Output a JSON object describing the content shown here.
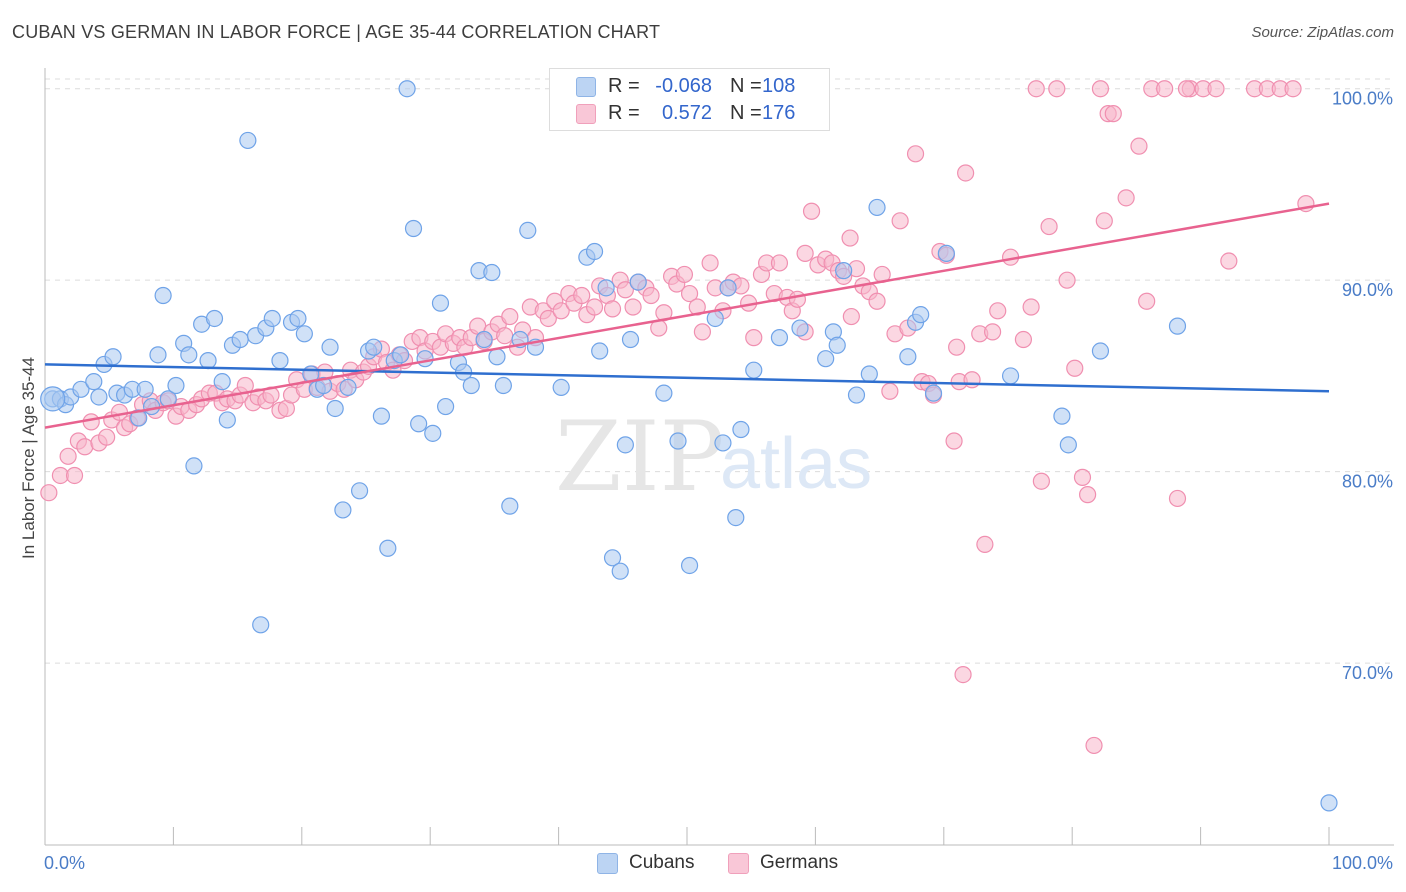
{
  "title": "CUBAN VS GERMAN IN LABOR FORCE | AGE 35-44 CORRELATION CHART",
  "source": "Source: ZipAtlas.com",
  "watermark": {
    "zip": "ZIP",
    "atlas": "atlas"
  },
  "legend": {
    "rows": [
      {
        "r_label": "R =",
        "r_value": "-0.068",
        "n_label": "N =",
        "n_value": "108",
        "color": "#a9c8f0"
      },
      {
        "r_label": "R =",
        "r_value": "0.572",
        "n_label": "N =",
        "n_value": "176",
        "color": "#f7b6cb"
      }
    ]
  },
  "bottom_legend": [
    {
      "label": "Cubans",
      "color": "#a9c8f0"
    },
    {
      "label": "Germans",
      "color": "#f7b6cb"
    }
  ],
  "chart_data": {
    "type": "scatter",
    "ylabel": "In Labor Force | Age 35-44",
    "xlabel": "",
    "xlim": [
      0,
      100
    ],
    "ylim": [
      60.5,
      101.5
    ],
    "x_tick_labels": [
      "0.0%",
      "100.0%"
    ],
    "y_ticks": [
      {
        "value": 70,
        "label": "70.0%"
      },
      {
        "value": 80,
        "label": "80.0%"
      },
      {
        "value": 90,
        "label": "90.0%"
      },
      {
        "value": 100,
        "label": "100.0%"
      }
    ],
    "grid": "horizontal-dashed",
    "legend_position": "top-center",
    "series": [
      {
        "name": "Cubans",
        "color": "#6fa3e8",
        "fill": "#a9c8f0",
        "trend": {
          "x1": 0,
          "y1": 85.6,
          "x2": 100,
          "y2": 84.2,
          "color": "#2f6fcf"
        },
        "points": [
          [
            0.6,
            83.8
          ],
          [
            1.2,
            83.8
          ],
          [
            1.6,
            83.5
          ],
          [
            2.0,
            83.9
          ],
          [
            2.8,
            84.3
          ],
          [
            3.8,
            84.7
          ],
          [
            4.2,
            83.9
          ],
          [
            4.6,
            85.6
          ],
          [
            5.3,
            86.0
          ],
          [
            5.6,
            84.1
          ],
          [
            6.2,
            84.0
          ],
          [
            6.8,
            84.3
          ],
          [
            7.3,
            82.8
          ],
          [
            7.8,
            84.3
          ],
          [
            8.3,
            83.4
          ],
          [
            8.8,
            86.1
          ],
          [
            9.2,
            89.2
          ],
          [
            9.6,
            83.8
          ],
          [
            10.2,
            84.5
          ],
          [
            10.8,
            86.7
          ],
          [
            11.2,
            86.1
          ],
          [
            11.6,
            80.3
          ],
          [
            12.2,
            87.7
          ],
          [
            12.7,
            85.8
          ],
          [
            13.2,
            88.0
          ],
          [
            13.8,
            84.7
          ],
          [
            14.2,
            82.7
          ],
          [
            14.6,
            86.6
          ],
          [
            15.2,
            86.9
          ],
          [
            15.8,
            97.3
          ],
          [
            16.4,
            87.1
          ],
          [
            16.8,
            72.0
          ],
          [
            17.2,
            87.5
          ],
          [
            17.7,
            88.0
          ],
          [
            18.3,
            85.8
          ],
          [
            19.2,
            87.8
          ],
          [
            19.7,
            88.0
          ],
          [
            20.2,
            87.2
          ],
          [
            20.7,
            85.1
          ],
          [
            21.2,
            84.3
          ],
          [
            21.7,
            84.5
          ],
          [
            22.2,
            86.5
          ],
          [
            22.6,
            83.3
          ],
          [
            23.2,
            78.0
          ],
          [
            23.6,
            84.4
          ],
          [
            24.5,
            79.0
          ],
          [
            25.2,
            86.3
          ],
          [
            25.6,
            86.5
          ],
          [
            26.2,
            82.9
          ],
          [
            26.7,
            76.0
          ],
          [
            27.2,
            85.8
          ],
          [
            27.7,
            86.1
          ],
          [
            28.2,
            100.0
          ],
          [
            28.7,
            92.7
          ],
          [
            29.1,
            82.5
          ],
          [
            29.6,
            85.9
          ],
          [
            30.2,
            82.0
          ],
          [
            30.8,
            88.8
          ],
          [
            31.2,
            83.4
          ],
          [
            32.2,
            85.7
          ],
          [
            32.6,
            85.2
          ],
          [
            33.2,
            84.5
          ],
          [
            33.8,
            90.5
          ],
          [
            34.2,
            86.9
          ],
          [
            34.8,
            90.4
          ],
          [
            35.2,
            86.0
          ],
          [
            35.7,
            84.5
          ],
          [
            36.2,
            78.2
          ],
          [
            37.0,
            86.9
          ],
          [
            37.6,
            92.6
          ],
          [
            38.2,
            86.5
          ],
          [
            40.2,
            84.4
          ],
          [
            42.2,
            91.2
          ],
          [
            42.8,
            91.5
          ],
          [
            43.2,
            86.3
          ],
          [
            43.7,
            89.6
          ],
          [
            44.2,
            75.5
          ],
          [
            44.8,
            74.8
          ],
          [
            45.2,
            81.4
          ],
          [
            45.6,
            86.9
          ],
          [
            46.2,
            89.9
          ],
          [
            48.2,
            84.1
          ],
          [
            49.3,
            81.6
          ],
          [
            50.2,
            75.1
          ],
          [
            52.2,
            88.0
          ],
          [
            52.8,
            81.5
          ],
          [
            53.2,
            89.6
          ],
          [
            53.8,
            77.6
          ],
          [
            54.2,
            82.2
          ],
          [
            55.2,
            85.3
          ],
          [
            57.2,
            87.0
          ],
          [
            58.8,
            87.5
          ],
          [
            60.8,
            85.9
          ],
          [
            61.4,
            87.3
          ],
          [
            61.7,
            86.6
          ],
          [
            62.2,
            90.5
          ],
          [
            63.2,
            84.0
          ],
          [
            64.2,
            85.1
          ],
          [
            64.8,
            93.8
          ],
          [
            67.2,
            86.0
          ],
          [
            67.8,
            87.8
          ],
          [
            68.2,
            88.2
          ],
          [
            69.2,
            84.1
          ],
          [
            70.2,
            91.4
          ],
          [
            75.2,
            85.0
          ],
          [
            79.2,
            82.9
          ],
          [
            79.7,
            81.4
          ],
          [
            82.2,
            86.3
          ],
          [
            100.0,
            62.7
          ],
          [
            88.2,
            87.6
          ]
        ]
      },
      {
        "name": "Germans",
        "color": "#f08fb0",
        "fill": "#f7b6cb",
        "trend": {
          "x1": 0,
          "y1": 82.3,
          "x2": 100,
          "y2": 94.0,
          "color": "#e8628f"
        },
        "points": [
          [
            0.3,
            78.9
          ],
          [
            1.2,
            79.8
          ],
          [
            1.8,
            80.8
          ],
          [
            2.3,
            79.8
          ],
          [
            2.6,
            81.6
          ],
          [
            3.1,
            81.3
          ],
          [
            3.6,
            82.6
          ],
          [
            4.2,
            81.5
          ],
          [
            4.8,
            81.8
          ],
          [
            5.2,
            82.7
          ],
          [
            5.8,
            83.1
          ],
          [
            6.2,
            82.3
          ],
          [
            6.6,
            82.5
          ],
          [
            7.2,
            82.8
          ],
          [
            7.6,
            83.5
          ],
          [
            8.2,
            83.7
          ],
          [
            8.6,
            83.2
          ],
          [
            9.2,
            83.6
          ],
          [
            9.6,
            83.7
          ],
          [
            10.2,
            82.9
          ],
          [
            10.6,
            83.4
          ],
          [
            11.2,
            83.2
          ],
          [
            11.8,
            83.5
          ],
          [
            12.2,
            83.8
          ],
          [
            12.8,
            84.1
          ],
          [
            13.3,
            84.1
          ],
          [
            13.8,
            83.6
          ],
          [
            14.2,
            83.8
          ],
          [
            14.8,
            83.7
          ],
          [
            15.2,
            84.0
          ],
          [
            15.6,
            84.5
          ],
          [
            16.2,
            83.6
          ],
          [
            16.6,
            83.9
          ],
          [
            17.2,
            83.7
          ],
          [
            17.6,
            84.0
          ],
          [
            18.3,
            83.2
          ],
          [
            18.8,
            83.3
          ],
          [
            19.2,
            84.0
          ],
          [
            19.6,
            84.8
          ],
          [
            20.2,
            84.3
          ],
          [
            20.8,
            85.1
          ],
          [
            21.2,
            84.4
          ],
          [
            21.8,
            85.2
          ],
          [
            22.2,
            84.2
          ],
          [
            22.8,
            84.6
          ],
          [
            23.3,
            84.3
          ],
          [
            23.8,
            85.3
          ],
          [
            24.2,
            84.8
          ],
          [
            24.8,
            85.2
          ],
          [
            25.2,
            85.5
          ],
          [
            25.6,
            86.0
          ],
          [
            26.2,
            86.4
          ],
          [
            26.6,
            85.7
          ],
          [
            27.1,
            85.3
          ],
          [
            27.6,
            86.1
          ],
          [
            28.0,
            85.8
          ],
          [
            28.6,
            86.8
          ],
          [
            29.2,
            87.0
          ],
          [
            29.6,
            86.3
          ],
          [
            30.2,
            86.8
          ],
          [
            30.8,
            86.5
          ],
          [
            31.2,
            87.2
          ],
          [
            31.8,
            86.7
          ],
          [
            32.3,
            87.0
          ],
          [
            32.7,
            86.5
          ],
          [
            33.2,
            87.0
          ],
          [
            33.7,
            87.6
          ],
          [
            34.2,
            86.8
          ],
          [
            34.8,
            87.3
          ],
          [
            35.3,
            87.7
          ],
          [
            35.8,
            87.1
          ],
          [
            36.2,
            88.1
          ],
          [
            36.8,
            86.5
          ],
          [
            37.2,
            87.4
          ],
          [
            37.8,
            88.6
          ],
          [
            38.2,
            87.0
          ],
          [
            38.8,
            88.4
          ],
          [
            39.2,
            88.0
          ],
          [
            39.7,
            88.9
          ],
          [
            40.2,
            88.4
          ],
          [
            40.8,
            89.3
          ],
          [
            41.2,
            88.8
          ],
          [
            41.8,
            89.2
          ],
          [
            42.2,
            88.2
          ],
          [
            42.8,
            88.6
          ],
          [
            43.2,
            89.7
          ],
          [
            43.8,
            89.2
          ],
          [
            44.2,
            88.5
          ],
          [
            44.8,
            90.0
          ],
          [
            45.2,
            89.5
          ],
          [
            45.8,
            88.6
          ],
          [
            46.2,
            89.9
          ],
          [
            46.8,
            89.6
          ],
          [
            47.2,
            89.2
          ],
          [
            47.8,
            87.5
          ],
          [
            48.2,
            88.3
          ],
          [
            48.8,
            90.2
          ],
          [
            49.2,
            89.8
          ],
          [
            49.8,
            90.3
          ],
          [
            50.2,
            89.3
          ],
          [
            50.8,
            88.6
          ],
          [
            51.2,
            87.3
          ],
          [
            51.8,
            90.9
          ],
          [
            52.2,
            89.6
          ],
          [
            52.8,
            88.4
          ],
          [
            53.2,
            89.6
          ],
          [
            53.6,
            89.9
          ],
          [
            54.2,
            89.7
          ],
          [
            54.8,
            88.8
          ],
          [
            55.2,
            87.0
          ],
          [
            55.8,
            90.3
          ],
          [
            56.2,
            90.9
          ],
          [
            56.8,
            89.3
          ],
          [
            57.2,
            90.9
          ],
          [
            57.8,
            89.1
          ],
          [
            58.2,
            88.4
          ],
          [
            58.6,
            89.0
          ],
          [
            59.2,
            91.4
          ],
          [
            59.7,
            93.6
          ],
          [
            60.2,
            90.8
          ],
          [
            60.8,
            91.1
          ],
          [
            61.3,
            90.9
          ],
          [
            61.8,
            90.5
          ],
          [
            62.2,
            90.2
          ],
          [
            62.7,
            92.2
          ],
          [
            63.2,
            90.6
          ],
          [
            63.7,
            89.7
          ],
          [
            64.2,
            89.4
          ],
          [
            64.8,
            88.9
          ],
          [
            65.2,
            90.3
          ],
          [
            65.8,
            84.2
          ],
          [
            66.2,
            87.2
          ],
          [
            66.6,
            93.1
          ],
          [
            67.2,
            87.5
          ],
          [
            67.8,
            96.6
          ],
          [
            68.3,
            84.7
          ],
          [
            68.8,
            84.6
          ],
          [
            69.2,
            84.0
          ],
          [
            69.7,
            91.5
          ],
          [
            70.2,
            91.3
          ],
          [
            70.8,
            81.6
          ],
          [
            71.2,
            84.7
          ],
          [
            71.7,
            95.6
          ],
          [
            72.2,
            84.8
          ],
          [
            72.8,
            87.2
          ],
          [
            73.2,
            76.2
          ],
          [
            73.8,
            87.3
          ],
          [
            74.2,
            88.4
          ],
          [
            75.2,
            91.2
          ],
          [
            76.2,
            86.9
          ],
          [
            77.2,
            100.0
          ],
          [
            78.2,
            92.8
          ],
          [
            78.8,
            100.0
          ],
          [
            80.2,
            85.4
          ],
          [
            80.8,
            79.7
          ],
          [
            81.2,
            78.8
          ],
          [
            82.2,
            100.0
          ],
          [
            82.8,
            98.7
          ],
          [
            83.2,
            98.7
          ],
          [
            84.2,
            94.3
          ],
          [
            85.2,
            97.0
          ],
          [
            86.2,
            100.0
          ],
          [
            87.2,
            100.0
          ],
          [
            88.2,
            78.6
          ],
          [
            89.2,
            100.0
          ],
          [
            90.2,
            100.0
          ],
          [
            91.2,
            100.0
          ],
          [
            92.2,
            91.0
          ],
          [
            94.2,
            100.0
          ],
          [
            95.2,
            100.0
          ],
          [
            96.2,
            100.0
          ],
          [
            97.2,
            100.0
          ],
          [
            98.2,
            94.0
          ],
          [
            77.6,
            79.5
          ],
          [
            71.5,
            69.4
          ],
          [
            81.7,
            65.7
          ],
          [
            59.2,
            87.3
          ],
          [
            62.8,
            88.1
          ],
          [
            71.0,
            86.5
          ],
          [
            76.8,
            88.6
          ],
          [
            79.6,
            90.0
          ],
          [
            82.5,
            93.1
          ],
          [
            85.8,
            88.9
          ],
          [
            88.9,
            100.0
          ]
        ]
      }
    ]
  }
}
